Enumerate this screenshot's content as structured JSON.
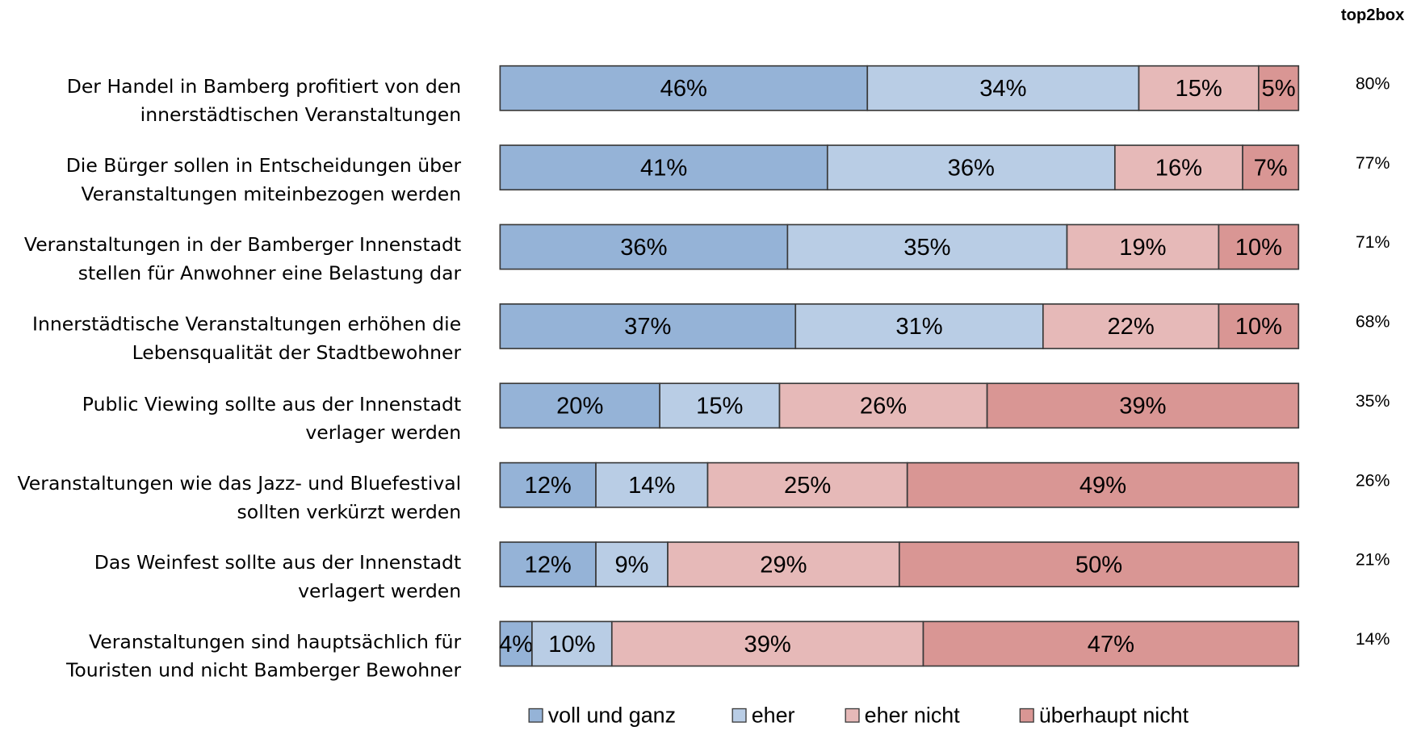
{
  "chart_data": {
    "type": "stacked_bar_horizontal_100",
    "categories": [
      "Der Handel in Bamberg profitiert von den\ninnerstädtischen Veranstaltungen",
      "Die Bürger sollen in Entscheidungen über\nVeranstaltungen miteinbezogen werden",
      "Veranstaltungen in der Bamberger Innenstadt\nstellen für Anwohner eine Belastung dar",
      "Innerstädtische Veranstaltungen erhöhen die\nLebensqualität der Stadtbewohner",
      "Public Viewing sollte aus der Innenstadt\nverlager werden",
      "Veranstaltungen wie das Jazz- und Bluefestival\nsollten verkürzt werden",
      "Das Weinfest sollte aus der Innenstadt\nverlagert werden",
      "Veranstaltungen sind hauptsächlich für\nTouristen und nicht Bamberger Bewohner"
    ],
    "series": [
      {
        "name": "voll und ganz",
        "color": "#95b3d7",
        "values": [
          46,
          41,
          36,
          37,
          20,
          12,
          12,
          4
        ],
        "value_labels": [
          "46%",
          "41%",
          "36%",
          "37%",
          "20%",
          "12%",
          "12%",
          "4%"
        ]
      },
      {
        "name": "eher",
        "color": "#b9cde5",
        "values": [
          34,
          36,
          35,
          31,
          15,
          14,
          9,
          10
        ],
        "value_labels": [
          "34%",
          "36%",
          "35%",
          "31%",
          "15%",
          "14%",
          "9%",
          "10%"
        ]
      },
      {
        "name": "eher nicht",
        "color": "#e6b9b8",
        "values": [
          15,
          16,
          19,
          22,
          26,
          25,
          29,
          39
        ],
        "value_labels": [
          "15%",
          "16%",
          "19%",
          "22%",
          "26%",
          "25%",
          "29%",
          "39%"
        ]
      },
      {
        "name": "überhaupt nicht",
        "color": "#d99694",
        "values": [
          5,
          7,
          10,
          10,
          39,
          49,
          50,
          47
        ],
        "value_labels": [
          "5%",
          "7%",
          "10%",
          "10%",
          "39%",
          "49%",
          "50%",
          "47%"
        ]
      }
    ],
    "xlim": [
      0,
      100
    ],
    "top2box": {
      "title": "top2box",
      "values": [
        80,
        77,
        71,
        68,
        35,
        26,
        21,
        14
      ],
      "value_labels": [
        "80%",
        "77%",
        "71%",
        "68%",
        "35%",
        "26%",
        "21%",
        "14%"
      ]
    },
    "legend": "bottom"
  }
}
